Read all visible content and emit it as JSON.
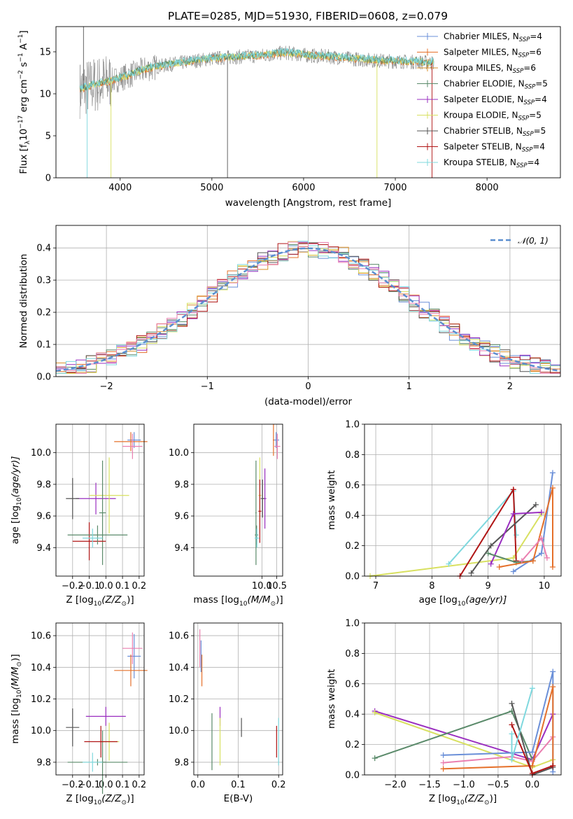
{
  "figure": {
    "title": "PLATE=0285, MJD=51930, FIBERID=0608, z=0.079"
  },
  "colors": {
    "Chabrier MILES": "#6a8fd8",
    "Salpeter MILES": "#e5702a",
    "Kroupa MILES": "#d9902b",
    "Chabrier ELODIE": "#5a8a6a",
    "Salpeter ELODIE": "#9a2fc0",
    "Kroupa ELODIE": "#d8e060",
    "Chabrier STELIB": "#555555",
    "Salpeter STELIB": "#b01515",
    "Kroupa STELIB": "#7fd8de",
    "pink": "#ea7fb0",
    "gauss": "#5b8fd0",
    "grid": "#b0b0b0"
  },
  "chart_data": [
    {
      "id": "spectrum",
      "type": "line",
      "xlabel": "wavelength [Angstrom, rest frame]",
      "ylabel": "Flux [f",
      "ylabel_tail": "λ",
      "ylabel_rest": "10",
      "ylabel_units": "erg cm",
      "xlim": [
        3300,
        8800
      ],
      "ylim": [
        0,
        18
      ],
      "xticks": [
        4000,
        5000,
        6000,
        7000,
        8000
      ],
      "yticks": [
        0,
        5,
        10,
        15
      ],
      "grid": false,
      "legend_position": "right",
      "series": [
        {
          "name": "Chabrier MILES, N",
          "sub": "SSP",
          "val": "=4"
        },
        {
          "name": "Salpeter MILES, N",
          "sub": "SSP",
          "val": "=6"
        },
        {
          "name": "Kroupa MILES, N",
          "sub": "SSP",
          "val": "=6"
        },
        {
          "name": "Chabrier ELODIE, N",
          "sub": "SSP",
          "val": "=5"
        },
        {
          "name": "Salpeter ELODIE, N",
          "sub": "SSP",
          "val": "=4"
        },
        {
          "name": "Kroupa ELODIE, N",
          "sub": "SSP",
          "val": "=5"
        },
        {
          "name": "Chabrier STELIB, N",
          "sub": "SSP",
          "val": "=5"
        },
        {
          "name": "Salpeter STELIB, N",
          "sub": "SSP",
          "val": "=4"
        },
        {
          "name": "Kroupa STELIB, N",
          "sub": "SSP",
          "val": "=4"
        }
      ],
      "approx_continuum": {
        "x": [
          3560,
          3700,
          3900,
          4100,
          4300,
          4600,
          5000,
          5300,
          5600,
          5800,
          6000,
          6300,
          6600,
          6900,
          7200,
          7400
        ],
        "y": [
          10.5,
          11.0,
          11.5,
          12.2,
          13.0,
          13.6,
          14.2,
          14.4,
          14.6,
          14.9,
          14.6,
          14.4,
          14.1,
          13.9,
          13.8,
          13.7
        ]
      }
    },
    {
      "id": "residuals",
      "type": "line",
      "xlabel": "(data-model)/error",
      "ylabel": "Normed distribution",
      "xlim": [
        -2.5,
        2.5
      ],
      "ylim": [
        0,
        0.47
      ],
      "xticks": [
        -2,
        -1,
        0,
        1,
        2
      ],
      "xtick_labels": [
        "−2",
        "−1",
        "0",
        "1",
        "2"
      ],
      "yticks": [
        0.0,
        0.1,
        0.2,
        0.3,
        0.4
      ],
      "ytick_labels": [
        "0.0",
        "0.1",
        "0.2",
        "0.3",
        "0.4"
      ],
      "grid": true,
      "legend": "𝒩(0, 1)",
      "legend_position": "top-right",
      "bin_width": 0.1,
      "gaussian": {
        "mu": 0,
        "sigma": 1
      }
    },
    {
      "id": "age_vs_Z",
      "type": "scatter",
      "xlabel": "Z [log",
      "xlabel_sub": "10",
      "xlabel_rest": "(Z/Z",
      "ylabel": "age  [log",
      "ylabel_sub": "10",
      "ylabel_rest": "(age/yr)]",
      "xlim": [
        -0.3,
        0.23
      ],
      "ylim": [
        9.22,
        10.18
      ],
      "xticks": [
        -0.2,
        -0.1,
        0.0,
        0.1,
        0.2
      ],
      "xtick_labels": [
        "−0.2",
        "−0.1",
        "0.0",
        "0.1",
        "0.2"
      ],
      "yticks": [
        9.4,
        9.6,
        9.8,
        10.0
      ],
      "ytick_labels": [
        "9.4",
        "9.6",
        "9.8",
        "10.0"
      ],
      "grid": true,
      "points": [
        {
          "x": 0.17,
          "y": 10.08,
          "dx": 0.04,
          "dy": 0.05,
          "c": "Chabrier MILES"
        },
        {
          "x": 0.15,
          "y": 10.07,
          "dx": 0.1,
          "dy": 0.06,
          "c": "Salpeter MILES"
        },
        {
          "x": 0.16,
          "y": 10.04,
          "dx": 0.06,
          "dy": 0.08,
          "c": "pink"
        },
        {
          "x": -0.06,
          "y": 9.71,
          "dx": 0.12,
          "dy": 0.1,
          "c": "Salpeter ELODIE"
        },
        {
          "x": 0.02,
          "y": 9.73,
          "dx": 0.12,
          "dy": 0.24,
          "c": "Kroupa ELODIE"
        },
        {
          "x": -0.2,
          "y": 9.71,
          "dx": 0.04,
          "dy": 0.13,
          "c": "Chabrier STELIB"
        },
        {
          "x": -0.02,
          "y": 9.62,
          "dx": 0.02,
          "dy": 0.33,
          "c": "Chabrier ELODIE"
        },
        {
          "x": -0.1,
          "y": 9.44,
          "dx": 0.1,
          "dy": 0.12,
          "c": "Salpeter STELIB"
        },
        {
          "x": -0.05,
          "y": 9.48,
          "dx": 0.18,
          "dy": 0.06,
          "c": "Chabrier ELODIE"
        },
        {
          "x": -0.08,
          "y": 9.46,
          "dx": 0.06,
          "dy": 0.06,
          "c": "Kroupa STELIB"
        }
      ]
    },
    {
      "id": "age_vs_mass",
      "type": "scatter",
      "xlabel": "mass [log",
      "xlabel_sub": "10",
      "xlabel_rest": "(M/M",
      "xlim": [
        7.7,
        10.7
      ],
      "ylim": [
        9.22,
        10.18
      ],
      "xticks": [
        10.0,
        10.5
      ],
      "xtick_labels": [
        "10.0",
        "10.5"
      ],
      "yticks": [
        9.4,
        9.6,
        9.8,
        10.0
      ],
      "ytick_labels": [
        "9.4",
        "9.6",
        "9.8",
        "10.0"
      ],
      "grid": true,
      "points": [
        {
          "x": 10.48,
          "y": 10.08,
          "dx": 0.1,
          "dy": 0.05,
          "c": "Chabrier MILES"
        },
        {
          "x": 10.39,
          "y": 10.08,
          "dx": 0.02,
          "dy": 0.1,
          "c": "Salpeter MILES"
        },
        {
          "x": 10.52,
          "y": 10.04,
          "dx": 0.1,
          "dy": 0.08,
          "c": "pink"
        },
        {
          "x": 10.1,
          "y": 9.71,
          "dx": 0.05,
          "dy": 0.19,
          "c": "Salpeter ELODIE"
        },
        {
          "x": 9.93,
          "y": 9.73,
          "dx": 0.05,
          "dy": 0.24,
          "c": "Kroupa ELODIE"
        },
        {
          "x": 10.02,
          "y": 9.71,
          "dx": 0.06,
          "dy": 0.12,
          "c": "Chabrier STELIB"
        },
        {
          "x": 9.8,
          "y": 9.62,
          "dx": 0.02,
          "dy": 0.33,
          "c": "Chabrier ELODIE"
        },
        {
          "x": 9.93,
          "y": 9.63,
          "dx": 0.05,
          "dy": 0.2,
          "c": "Salpeter STELIB"
        },
        {
          "x": 9.82,
          "y": 9.48,
          "dx": 0.06,
          "dy": 0.06,
          "c": "Chabrier ELODIE"
        },
        {
          "x": 9.83,
          "y": 9.46,
          "dx": 0.08,
          "dy": 0.06,
          "c": "Kroupa STELIB"
        }
      ]
    },
    {
      "id": "weight_vs_age",
      "type": "line",
      "xlabel": "age  [log",
      "xlabel_sub": "10",
      "xlabel_rest": "(age/yr)]",
      "ylabel": "mass weight",
      "xlim": [
        6.8,
        10.3
      ],
      "ylim": [
        0,
        1
      ],
      "xticks": [
        7,
        8,
        9,
        10
      ],
      "yticks": [
        0.0,
        0.2,
        0.4,
        0.6,
        0.8,
        1.0
      ],
      "ytick_labels": [
        "0.0",
        "0.2",
        "0.4",
        "0.6",
        "0.8",
        "1.0"
      ],
      "grid": true,
      "series": [
        {
          "c": "Kroupa ELODIE",
          "x": [
            6.9,
            9.45,
            9.95
          ],
          "y": [
            0.0,
            0.12,
            0.41
          ]
        },
        {
          "c": "Kroupa STELIB",
          "x": [
            8.3,
            9.45,
            9.5
          ],
          "y": [
            0.08,
            0.56,
            0.27
          ]
        },
        {
          "c": "Salpeter STELIB",
          "x": [
            8.5,
            9.45,
            9.5
          ],
          "y": [
            0.0,
            0.57,
            0.1
          ]
        },
        {
          "c": "Chabrier STELIB",
          "x": [
            8.7,
            9.05,
            9.85
          ],
          "y": [
            0.02,
            0.2,
            0.47
          ]
        },
        {
          "c": "Salpeter ELODIE",
          "x": [
            9.05,
            9.45,
            9.95
          ],
          "y": [
            0.08,
            0.41,
            0.42
          ]
        },
        {
          "c": "Chabrier ELODIE",
          "x": [
            9.0,
            9.5,
            9.8
          ],
          "y": [
            0.15,
            0.09,
            0.1
          ]
        },
        {
          "c": "Chabrier MILES",
          "x": [
            9.45,
            9.95,
            10.15
          ],
          "y": [
            0.03,
            0.15,
            0.68
          ]
        },
        {
          "c": "Salpeter MILES",
          "x": [
            9.2,
            9.8,
            10.15,
            10.15
          ],
          "y": [
            0.06,
            0.1,
            0.58,
            0.06
          ]
        },
        {
          "c": "pink",
          "x": [
            9.6,
            9.95,
            10.05
          ],
          "y": [
            0.1,
            0.25,
            0.12
          ]
        }
      ]
    },
    {
      "id": "mass_vs_Z",
      "type": "scatter",
      "xlabel": "Z [log",
      "xlabel_sub": "10",
      "xlabel_rest": "(Z/Z",
      "ylabel": "mass [log",
      "ylabel_sub": "10",
      "ylabel_rest": "(M/M",
      "xlim": [
        -0.3,
        0.23
      ],
      "ylim": [
        9.72,
        10.68
      ],
      "xticks": [
        -0.2,
        -0.1,
        0.0,
        0.1,
        0.2
      ],
      "xtick_labels": [
        "−0.2",
        "−0.1",
        "0.0",
        "0.1",
        "0.2"
      ],
      "yticks": [
        9.8,
        10.0,
        10.2,
        10.4,
        10.6
      ],
      "ytick_labels": [
        "9.8",
        "10.0",
        "10.2",
        "10.4",
        "10.6"
      ],
      "grid": true,
      "points": [
        {
          "x": 0.17,
          "y": 10.47,
          "dx": 0.04,
          "dy": 0.14,
          "c": "Chabrier MILES"
        },
        {
          "x": 0.15,
          "y": 10.38,
          "dx": 0.1,
          "dy": 0.1,
          "c": "Salpeter MILES"
        },
        {
          "x": 0.16,
          "y": 10.52,
          "dx": 0.06,
          "dy": 0.1,
          "c": "pink"
        },
        {
          "x": 0.0,
          "y": 10.09,
          "dx": 0.12,
          "dy": 0.06,
          "c": "Salpeter ELODIE"
        },
        {
          "x": 0.02,
          "y": 9.93,
          "dx": 0.06,
          "dy": 0.12,
          "c": "Kroupa ELODIE"
        },
        {
          "x": -0.2,
          "y": 10.02,
          "dx": 0.04,
          "dy": 0.12,
          "c": "Chabrier STELIB"
        },
        {
          "x": -0.02,
          "y": 9.8,
          "dx": 0.02,
          "dy": 0.2,
          "c": "Chabrier ELODIE"
        },
        {
          "x": -0.03,
          "y": 9.93,
          "dx": 0.1,
          "dy": 0.1,
          "c": "Salpeter STELIB"
        },
        {
          "x": -0.05,
          "y": 9.8,
          "dx": 0.18,
          "dy": 0.02,
          "c": "Chabrier ELODIE"
        },
        {
          "x": -0.08,
          "y": 9.8,
          "dx": 0.06,
          "dy": 0.06,
          "c": "Kroupa STELIB"
        }
      ]
    },
    {
      "id": "mass_vs_ebv",
      "type": "scatter",
      "xlabel": "E(B-V)",
      "xlim": [
        -0.01,
        0.21
      ],
      "ylim": [
        9.72,
        10.68
      ],
      "xticks": [
        0.0,
        0.1,
        0.2
      ],
      "xtick_labels": [
        "0.0",
        "0.1",
        "0.2"
      ],
      "yticks": [
        9.8,
        10.0,
        10.2,
        10.4,
        10.6
      ],
      "ytick_labels": [
        "9.8",
        "10.0",
        "10.2",
        "10.4",
        "10.6"
      ],
      "grid": true,
      "points": [
        {
          "x": 0.005,
          "y": 10.52,
          "dx": 0,
          "dy": 0.12,
          "c": "pink"
        },
        {
          "x": 0.01,
          "y": 10.38,
          "dx": 0,
          "dy": 0.1,
          "c": "Salpeter MILES"
        },
        {
          "x": 0.008,
          "y": 10.47,
          "dx": 0,
          "dy": 0.1,
          "c": "Chabrier MILES"
        },
        {
          "x": 0.055,
          "y": 10.09,
          "dx": 0,
          "dy": 0.06,
          "c": "Salpeter ELODIE"
        },
        {
          "x": 0.055,
          "y": 9.93,
          "dx": 0,
          "dy": 0.15,
          "c": "Kroupa ELODIE"
        },
        {
          "x": 0.108,
          "y": 10.02,
          "dx": 0,
          "dy": 0.06,
          "c": "Chabrier STELIB"
        },
        {
          "x": 0.035,
          "y": 9.93,
          "dx": 0,
          "dy": 0.18,
          "c": "Chabrier ELODIE"
        },
        {
          "x": 0.195,
          "y": 9.93,
          "dx": 0,
          "dy": 0.1,
          "c": "Salpeter STELIB"
        },
        {
          "x": 0.2,
          "y": 9.93,
          "dx": 0,
          "dy": 0.15,
          "c": "Kroupa STELIB"
        }
      ]
    },
    {
      "id": "weight_vs_Z",
      "type": "line",
      "xlabel": "Z [log",
      "xlabel_sub": "10",
      "xlabel_rest": "(Z/Z",
      "ylabel": "mass weight",
      "xlim": [
        -2.45,
        0.42
      ],
      "ylim": [
        0,
        1
      ],
      "xticks": [
        -2.0,
        -1.5,
        -1.0,
        -0.5,
        0.0
      ],
      "xtick_labels": [
        "−2.0",
        "−1.5",
        "−1.0",
        "−0.5",
        "0.0"
      ],
      "yticks": [
        0.0,
        0.2,
        0.4,
        0.6,
        0.8,
        1.0
      ],
      "ytick_labels": [
        "0.0",
        "0.2",
        "0.4",
        "0.6",
        "0.8",
        "1.0"
      ],
      "grid": true,
      "series": [
        {
          "c": "Salpeter ELODIE",
          "x": [
            -2.3,
            0.0,
            0.3
          ],
          "y": [
            0.42,
            0.1,
            0.4
          ]
        },
        {
          "c": "Kroupa ELODIE",
          "x": [
            -2.3,
            0.0,
            0.3
          ],
          "y": [
            0.41,
            0.05,
            0.1
          ]
        },
        {
          "c": "Chabrier ELODIE",
          "x": [
            -2.3,
            -0.3,
            0.0
          ],
          "y": [
            0.11,
            0.42,
            0.1
          ]
        },
        {
          "c": "Chabrier MILES",
          "x": [
            -1.3,
            0.0,
            0.3,
            0.3
          ],
          "y": [
            0.13,
            0.15,
            0.68,
            0.02
          ]
        },
        {
          "c": "pink",
          "x": [
            -1.3,
            -0.3,
            0.0,
            0.3
          ],
          "y": [
            0.08,
            0.12,
            0.09,
            0.25
          ]
        },
        {
          "c": "Salpeter MILES",
          "x": [
            -1.3,
            0.0,
            0.3,
            0.3
          ],
          "y": [
            0.04,
            0.06,
            0.58,
            0.06
          ]
        },
        {
          "c": "Chabrier STELIB",
          "x": [
            -0.3,
            0.0,
            0.3
          ],
          "y": [
            0.47,
            0.0,
            0.05
          ]
        },
        {
          "c": "Salpeter STELIB",
          "x": [
            -0.3,
            0.0,
            0.3
          ],
          "y": [
            0.33,
            0.01,
            0.06
          ]
        },
        {
          "c": "Kroupa STELIB",
          "x": [
            -0.3,
            -0.3,
            0.0
          ],
          "y": [
            0.27,
            0.1,
            0.57
          ]
        }
      ]
    }
  ]
}
